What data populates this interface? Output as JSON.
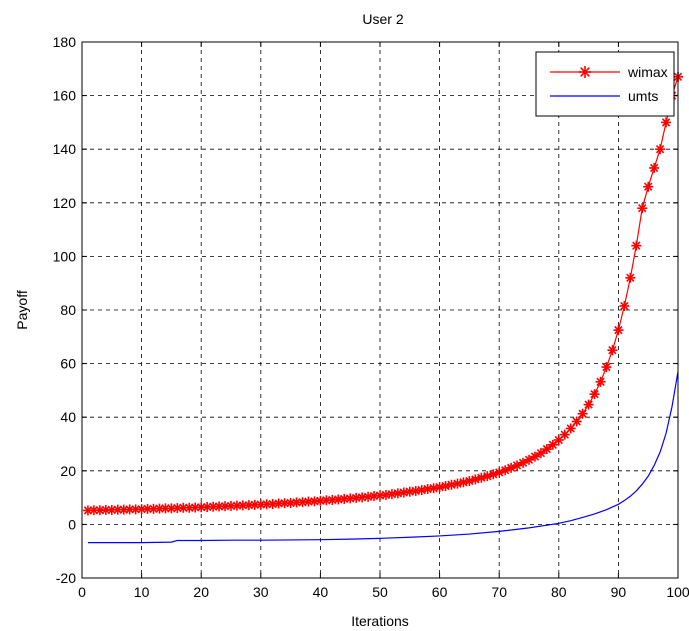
{
  "chart_data": {
    "type": "line",
    "title": "User 2",
    "xlabel": "Iterations",
    "ylabel": "Payoff",
    "xlim": [
      0,
      100
    ],
    "ylim": [
      -20,
      180
    ],
    "xticks": [
      0,
      10,
      20,
      30,
      40,
      50,
      60,
      70,
      80,
      90,
      100
    ],
    "yticks": [
      -20,
      0,
      20,
      40,
      60,
      80,
      100,
      120,
      140,
      160,
      180
    ],
    "grid": true,
    "legend_position": "top-right",
    "series": [
      {
        "name": "wimax",
        "color": "#ff0000",
        "marker": "asterisk",
        "x": [
          1,
          2,
          3,
          4,
          5,
          6,
          7,
          8,
          9,
          10,
          11,
          12,
          13,
          14,
          15,
          16,
          17,
          18,
          19,
          20,
          21,
          22,
          23,
          24,
          25,
          26,
          27,
          28,
          29,
          30,
          31,
          32,
          33,
          34,
          35,
          36,
          37,
          38,
          39,
          40,
          41,
          42,
          43,
          44,
          45,
          46,
          47,
          48,
          49,
          50,
          51,
          52,
          53,
          54,
          55,
          56,
          57,
          58,
          59,
          60,
          61,
          62,
          63,
          64,
          65,
          66,
          67,
          68,
          69,
          70,
          71,
          72,
          73,
          74,
          75,
          76,
          77,
          78,
          79,
          80,
          81,
          82,
          83,
          84,
          85,
          86,
          87,
          88,
          89,
          90,
          91,
          92,
          93,
          94,
          95,
          96,
          97,
          98,
          99,
          100
        ],
        "values": [
          5.2,
          5.3,
          5.3,
          5.4,
          5.4,
          5.5,
          5.5,
          5.6,
          5.6,
          5.7,
          5.8,
          5.8,
          5.9,
          6.0,
          6.0,
          6.1,
          6.2,
          6.2,
          6.3,
          6.4,
          6.5,
          6.6,
          6.7,
          6.8,
          6.9,
          7.0,
          7.1,
          7.2,
          7.3,
          7.4,
          7.5,
          7.6,
          7.8,
          7.9,
          8.0,
          8.2,
          8.3,
          8.5,
          8.6,
          8.8,
          9.0,
          9.1,
          9.3,
          9.5,
          9.7,
          9.9,
          10.1,
          10.3,
          10.6,
          10.8,
          11.0,
          11.3,
          11.6,
          11.9,
          12.2,
          12.5,
          12.8,
          13.2,
          13.5,
          13.9,
          14.3,
          14.8,
          15.2,
          15.7,
          16.2,
          16.8,
          17.4,
          18.0,
          18.7,
          19.4,
          20.2,
          21.1,
          22.0,
          23.0,
          24.1,
          25.3,
          26.6,
          28.1,
          29.7,
          31.5,
          33.5,
          35.8,
          38.4,
          41.3,
          44.7,
          48.6,
          53.2,
          58.7,
          65.0,
          72.5,
          81.5,
          92.0,
          104.0,
          118.0,
          126.0,
          133.0,
          140.0,
          150.0,
          160.0,
          167.0
        ]
      },
      {
        "name": "umts",
        "color": "#0000ff",
        "marker": "none",
        "x": [
          1,
          5,
          10,
          15,
          16,
          20,
          25,
          30,
          35,
          40,
          45,
          50,
          55,
          60,
          65,
          70,
          72,
          75,
          78,
          80,
          82,
          84,
          86,
          88,
          90,
          91,
          92,
          93,
          94,
          95,
          96,
          97,
          98,
          99,
          100
        ],
        "values": [
          -6.8,
          -6.8,
          -6.8,
          -6.6,
          -6.0,
          -6.0,
          -5.9,
          -5.9,
          -5.8,
          -5.7,
          -5.5,
          -5.2,
          -4.8,
          -4.3,
          -3.6,
          -2.6,
          -2.1,
          -1.3,
          -0.3,
          0.4,
          1.4,
          2.6,
          3.9,
          5.5,
          7.5,
          8.9,
          10.5,
          12.5,
          15.0,
          18.0,
          22.0,
          27.0,
          34.0,
          44.0,
          57.0
        ]
      }
    ]
  }
}
